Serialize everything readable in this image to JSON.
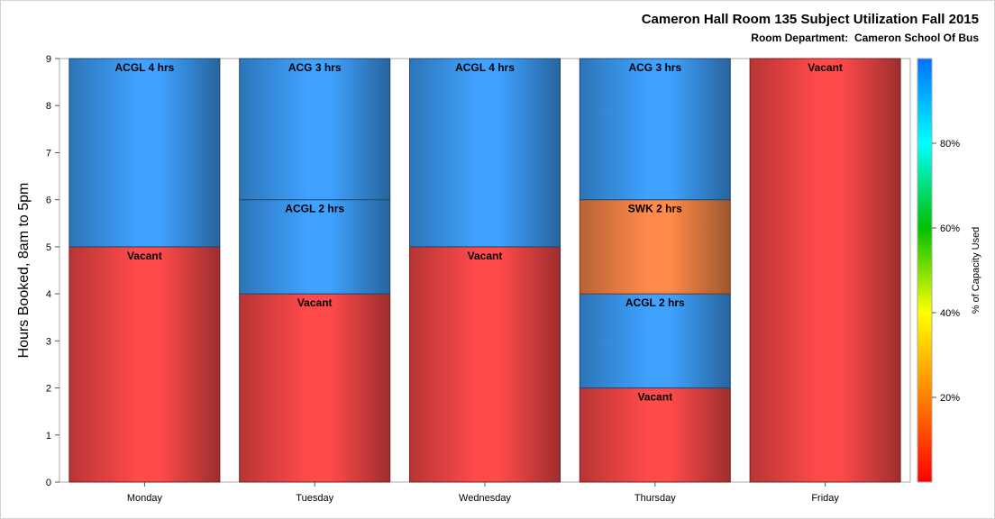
{
  "title": "Cameron Hall Room 135 Subject Utilization Fall 2015",
  "subtitle": "Room Department:  Cameron School Of Bus",
  "chart_data": {
    "type": "bar",
    "stacked": true,
    "ylabel": "Hours Booked, 8am to 5pm",
    "xlabel": "",
    "ylim": [
      0,
      9
    ],
    "yticks": [
      0,
      1,
      2,
      3,
      4,
      5,
      6,
      7,
      8,
      9
    ],
    "grid": false,
    "categories": [
      "Monday",
      "Tuesday",
      "Wednesday",
      "Thursday",
      "Friday"
    ],
    "bars": [
      {
        "category": "Monday",
        "segments": [
          {
            "label": "Vacant",
            "hours": 5,
            "color": "#FF4A4A"
          },
          {
            "label": "ACGL 4 hrs",
            "hours": 4,
            "color": "#3FA2FF"
          }
        ]
      },
      {
        "category": "Tuesday",
        "segments": [
          {
            "label": "Vacant",
            "hours": 4,
            "color": "#FF4A4A"
          },
          {
            "label": "ACGL 2 hrs",
            "hours": 2,
            "color": "#3FA2FF"
          },
          {
            "label": "ACG 3 hrs",
            "hours": 3,
            "color": "#3FA2FF"
          }
        ]
      },
      {
        "category": "Wednesday",
        "segments": [
          {
            "label": "Vacant",
            "hours": 5,
            "color": "#FF4A4A"
          },
          {
            "label": "ACGL 4 hrs",
            "hours": 4,
            "color": "#3FA2FF"
          }
        ]
      },
      {
        "category": "Thursday",
        "segments": [
          {
            "label": "Vacant",
            "hours": 2,
            "color": "#FF4A4A"
          },
          {
            "label": "ACGL 2 hrs",
            "hours": 2,
            "color": "#3FA2FF"
          },
          {
            "label": "SWK 2 hrs",
            "hours": 2,
            "color": "#FF8A4A"
          },
          {
            "label": "ACG 3 hrs",
            "hours": 3,
            "color": "#3FA2FF"
          }
        ]
      },
      {
        "category": "Friday",
        "segments": [
          {
            "label": "Vacant",
            "hours": 9,
            "color": "#FF4A4A"
          }
        ]
      }
    ],
    "colorbar": {
      "label": "% of Capacity Used",
      "ticks": [
        {
          "value": 20,
          "label": "20%"
        },
        {
          "value": 40,
          "label": "40%"
        },
        {
          "value": 60,
          "label": "60%"
        },
        {
          "value": 80,
          "label": "80%"
        }
      ],
      "range": [
        0,
        100
      ],
      "stops": [
        "#FF0000",
        "#FF8000",
        "#FFFF00",
        "#00C000",
        "#00FFFF",
        "#0070FF"
      ]
    }
  }
}
